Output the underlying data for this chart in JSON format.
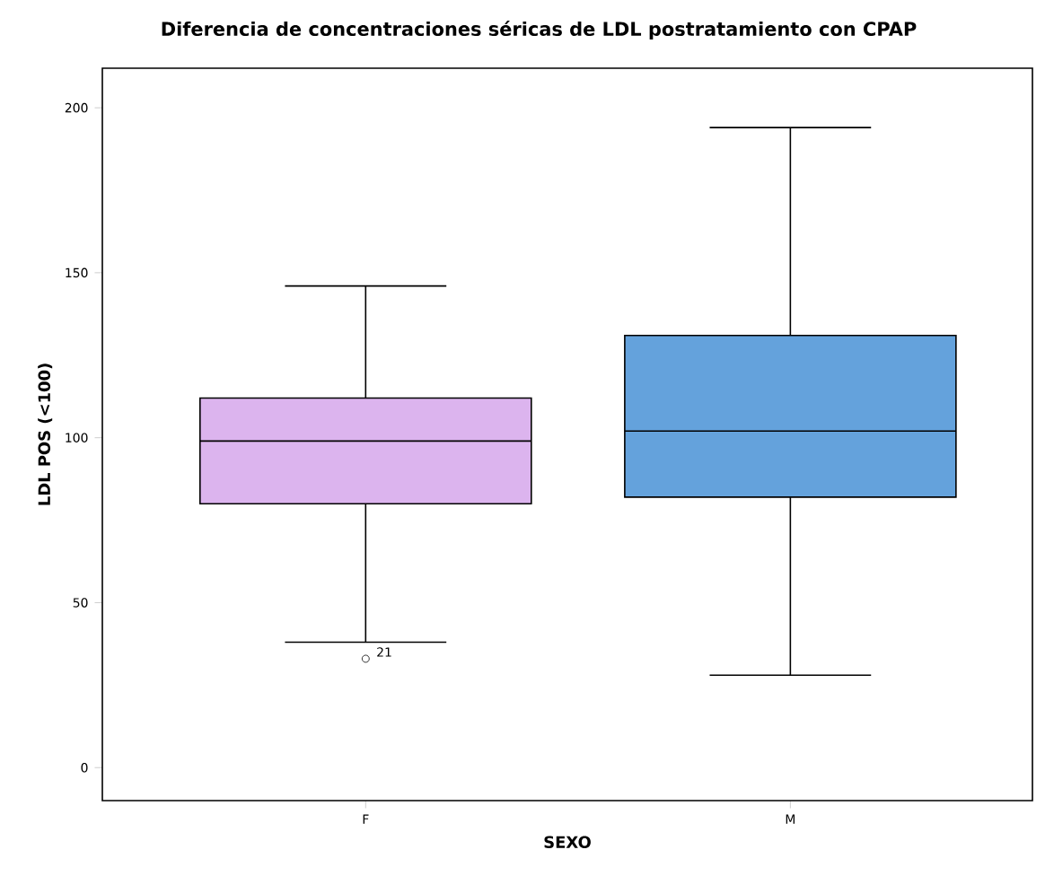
{
  "chart_data": {
    "type": "box",
    "title": "Diferencia de concentraciones séricas de LDL postratamiento con CPAP",
    "xlabel": "SEXO",
    "ylabel": "LDL POS (<100)",
    "categories": [
      "F",
      "M"
    ],
    "colors": [
      "#dcb4ee",
      "#64a2dc"
    ],
    "boxes": [
      {
        "low": 38,
        "q1": 80,
        "median": 99,
        "q3": 112,
        "high": 146,
        "outliers": [
          33
        ]
      },
      {
        "low": 28,
        "q1": 82,
        "median": 102,
        "q3": 131,
        "high": 194
      }
    ],
    "annotations": [
      "21"
    ],
    "ylim": [
      -10,
      212
    ],
    "yticks": [
      0,
      50,
      100,
      150,
      200
    ],
    "marker": "circle"
  }
}
